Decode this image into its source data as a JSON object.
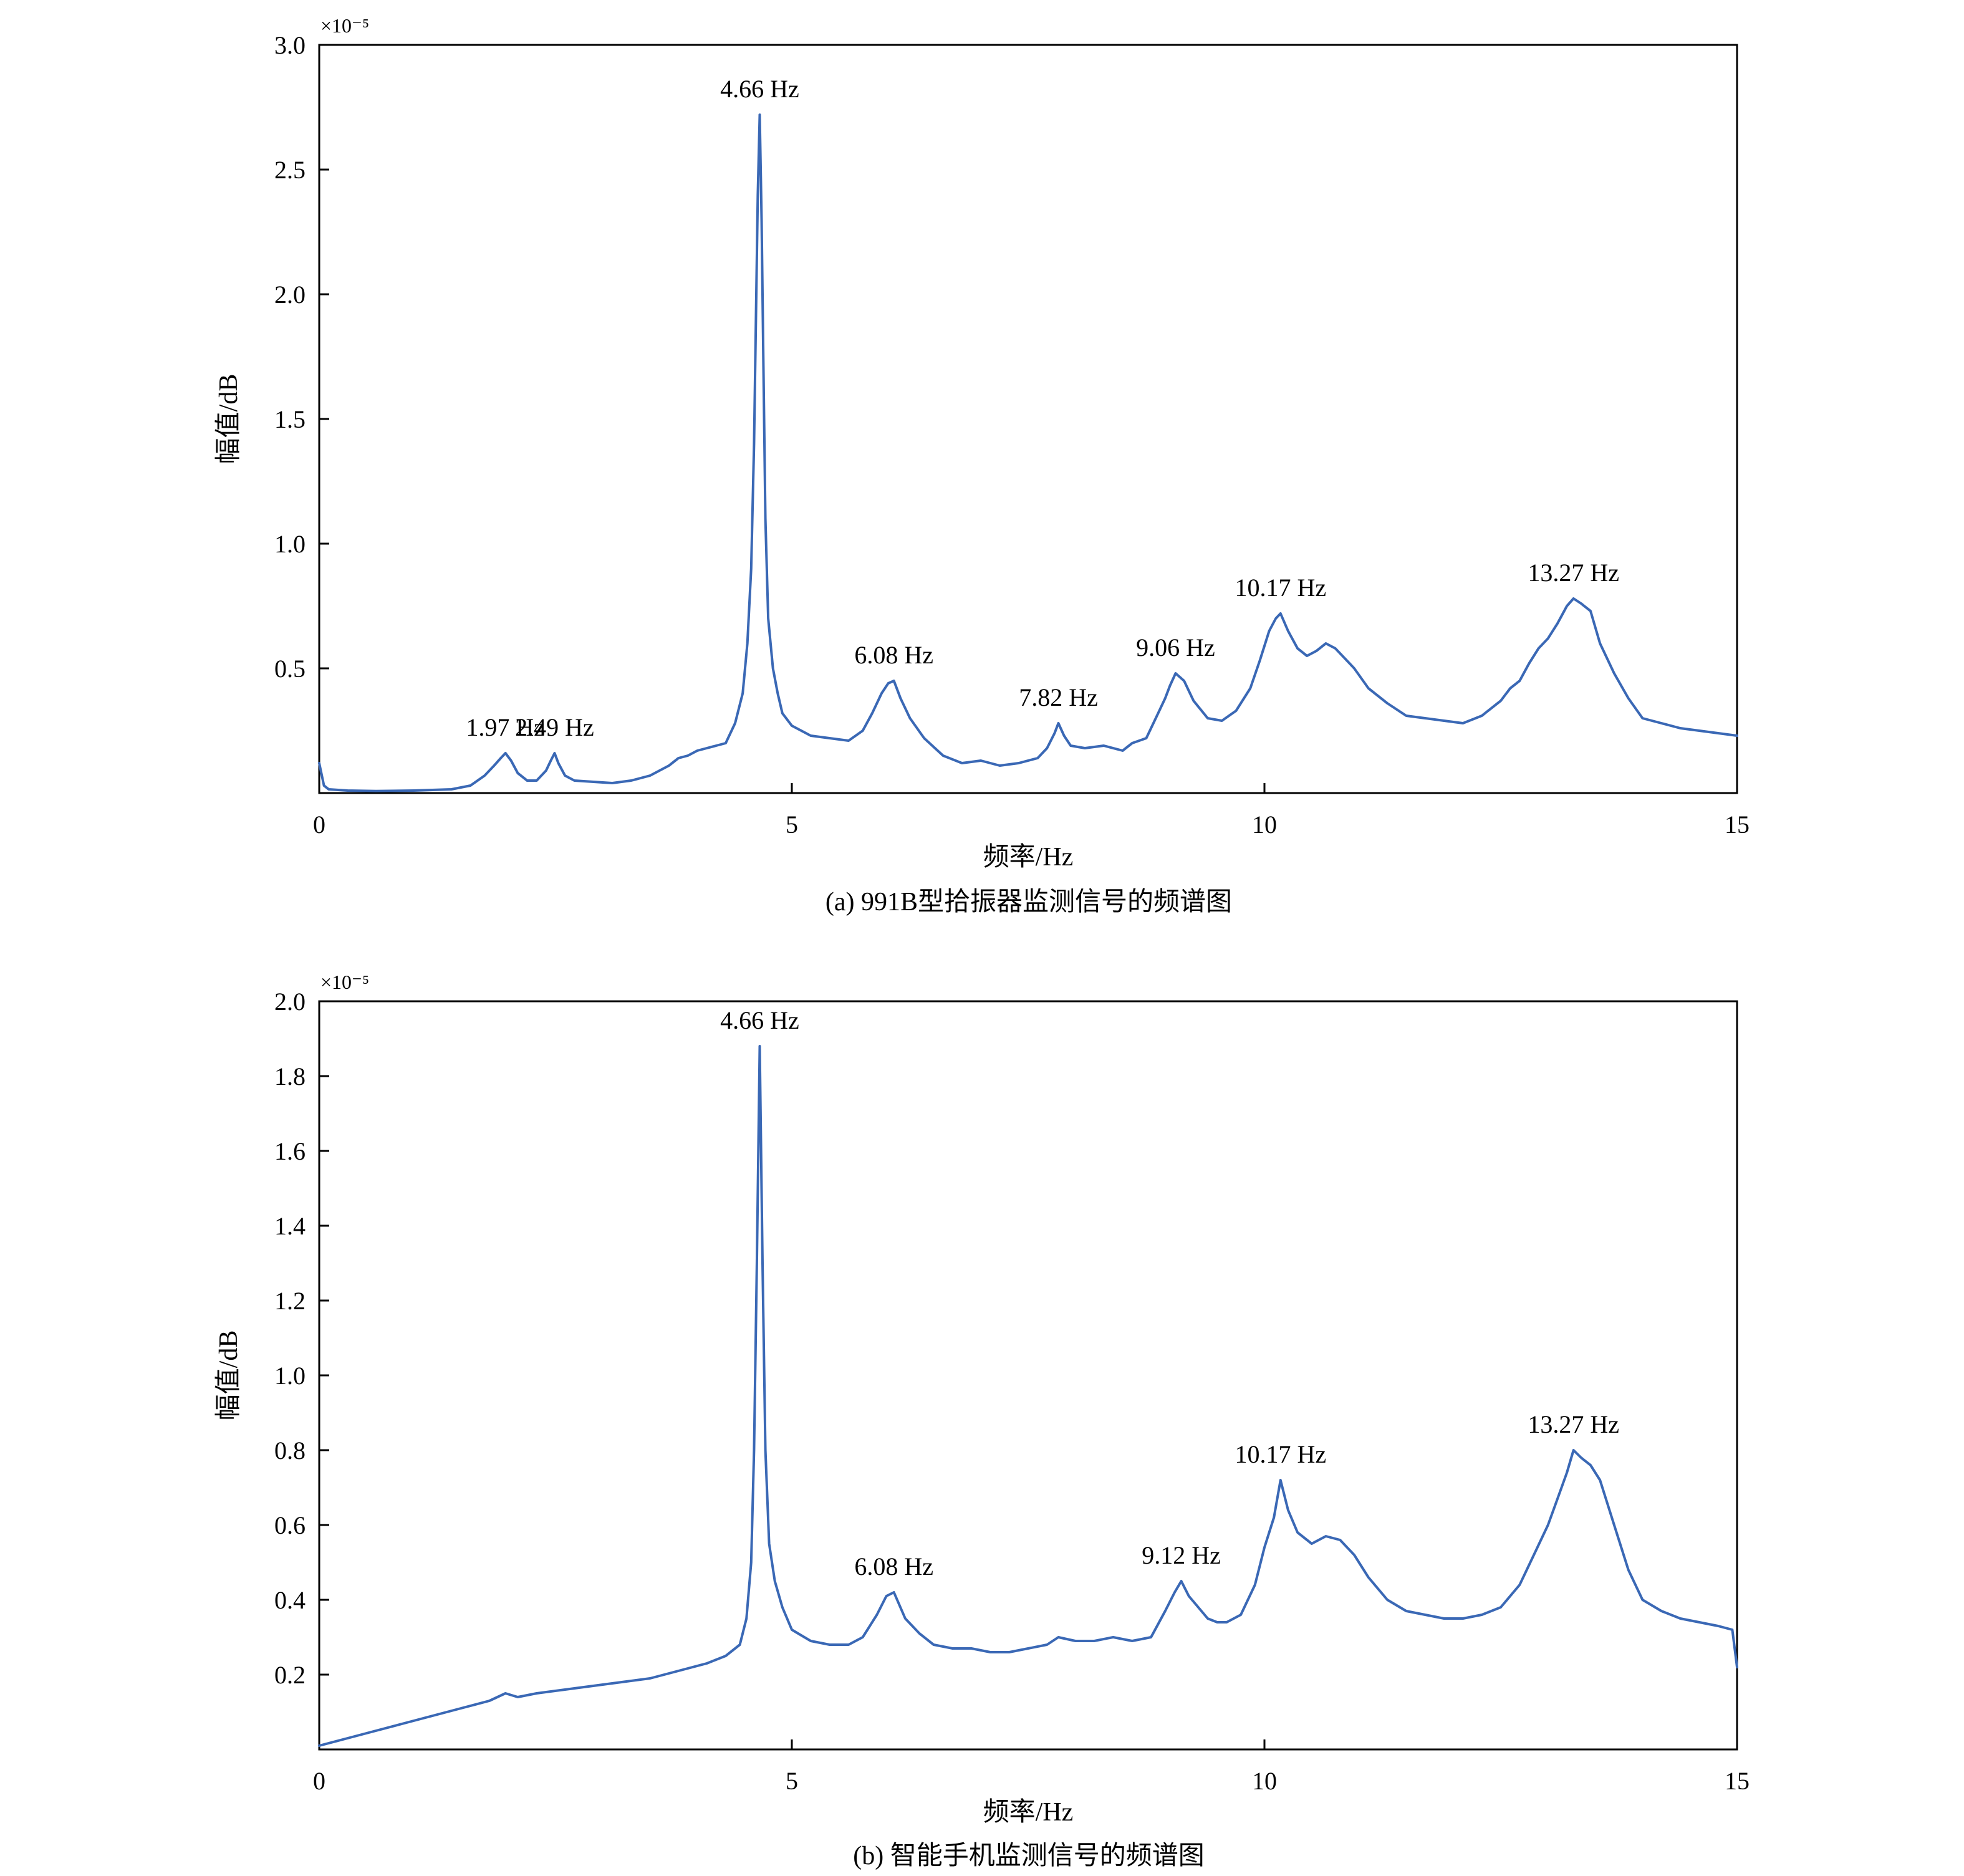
{
  "chart_data": [
    {
      "type": "line",
      "caption": "(a) 991B型拾振器监测信号的频谱图",
      "xlabel": "频率/Hz",
      "ylabel": "幅值/dB",
      "y_multiplier": "×10⁻⁵",
      "xlim": [
        0,
        15
      ],
      "ylim": [
        0,
        3.0
      ],
      "xticks": [
        0,
        5,
        10,
        15
      ],
      "yticks": [
        "0.5",
        "1.0",
        "1.5",
        "2.0",
        "2.5",
        "3.0"
      ],
      "grid": false,
      "line_color": "#3a68b5",
      "series": [
        {
          "x": [
            0,
            0.05,
            0.1,
            0.3,
            0.6,
            1.0,
            1.4,
            1.6,
            1.75,
            1.85,
            1.92,
            1.97,
            2.03,
            2.1,
            2.2,
            2.3,
            2.4,
            2.45,
            2.49,
            2.53,
            2.6,
            2.7,
            2.9,
            3.1,
            3.3,
            3.5,
            3.7,
            3.8,
            3.9,
            4.0,
            4.1,
            4.2,
            4.3,
            4.4,
            4.48,
            4.53,
            4.57,
            4.6,
            4.62,
            4.64,
            4.66,
            4.68,
            4.7,
            4.72,
            4.75,
            4.8,
            4.85,
            4.9,
            5.0,
            5.1,
            5.2,
            5.4,
            5.6,
            5.75,
            5.85,
            5.95,
            6.02,
            6.08,
            6.15,
            6.25,
            6.4,
            6.6,
            6.8,
            7.0,
            7.2,
            7.4,
            7.6,
            7.7,
            7.78,
            7.82,
            7.88,
            7.95,
            8.1,
            8.3,
            8.5,
            8.6,
            8.75,
            8.85,
            8.95,
            9.0,
            9.06,
            9.15,
            9.25,
            9.4,
            9.55,
            9.7,
            9.85,
            9.95,
            10.05,
            10.12,
            10.17,
            10.25,
            10.35,
            10.45,
            10.55,
            10.65,
            10.75,
            10.85,
            10.95,
            11.1,
            11.3,
            11.5,
            11.7,
            11.9,
            12.1,
            12.3,
            12.5,
            12.6,
            12.7,
            12.8,
            12.9,
            13.0,
            13.1,
            13.2,
            13.27,
            13.35,
            13.45,
            13.55,
            13.7,
            13.85,
            14.0,
            14.2,
            14.4,
            14.6,
            14.8,
            15.0
          ],
          "y": [
            0.12,
            0.03,
            0.015,
            0.01,
            0.008,
            0.01,
            0.015,
            0.03,
            0.07,
            0.11,
            0.14,
            0.16,
            0.13,
            0.08,
            0.05,
            0.05,
            0.09,
            0.13,
            0.16,
            0.12,
            0.07,
            0.05,
            0.045,
            0.04,
            0.05,
            0.07,
            0.11,
            0.14,
            0.15,
            0.17,
            0.18,
            0.19,
            0.2,
            0.28,
            0.4,
            0.6,
            0.9,
            1.4,
            1.9,
            2.4,
            2.72,
            2.3,
            1.7,
            1.1,
            0.7,
            0.5,
            0.4,
            0.32,
            0.27,
            0.25,
            0.23,
            0.22,
            0.21,
            0.25,
            0.32,
            0.4,
            0.44,
            0.45,
            0.38,
            0.3,
            0.22,
            0.15,
            0.12,
            0.13,
            0.11,
            0.12,
            0.14,
            0.18,
            0.24,
            0.28,
            0.23,
            0.19,
            0.18,
            0.19,
            0.17,
            0.2,
            0.22,
            0.3,
            0.38,
            0.43,
            0.48,
            0.45,
            0.37,
            0.3,
            0.29,
            0.33,
            0.42,
            0.53,
            0.65,
            0.7,
            0.72,
            0.65,
            0.58,
            0.55,
            0.57,
            0.6,
            0.58,
            0.54,
            0.5,
            0.42,
            0.36,
            0.31,
            0.3,
            0.29,
            0.28,
            0.31,
            0.37,
            0.42,
            0.45,
            0.52,
            0.58,
            0.62,
            0.68,
            0.75,
            0.78,
            0.76,
            0.73,
            0.6,
            0.48,
            0.38,
            0.3,
            0.28,
            0.26,
            0.25,
            0.24,
            0.23
          ]
        }
      ],
      "annotations": [
        {
          "text": "4.66 Hz",
          "x": 4.66,
          "y": 2.72
        },
        {
          "text": "1.97 Hz",
          "x": 1.97,
          "y": 0.16
        },
        {
          "text": "2.49 Hz",
          "x": 2.49,
          "y": 0.16
        },
        {
          "text": "6.08 Hz",
          "x": 6.08,
          "y": 0.45
        },
        {
          "text": "7.82 Hz",
          "x": 7.82,
          "y": 0.28
        },
        {
          "text": "9.06 Hz",
          "x": 9.06,
          "y": 0.48
        },
        {
          "text": "10.17 Hz",
          "x": 10.17,
          "y": 0.72
        },
        {
          "text": "13.27 Hz",
          "x": 13.27,
          "y": 0.78
        }
      ]
    },
    {
      "type": "line",
      "caption": "(b) 智能手机监测信号的频谱图",
      "xlabel": "频率/Hz",
      "ylabel": "幅值/dB",
      "y_multiplier": "×10⁻⁵",
      "xlim": [
        0,
        15
      ],
      "ylim": [
        0,
        2.0
      ],
      "xticks": [
        0,
        5,
        10,
        15
      ],
      "yticks": [
        "0.2",
        "0.4",
        "0.6",
        "0.8",
        "1.0",
        "1.2",
        "1.4",
        "1.6",
        "1.8",
        "2.0"
      ],
      "grid": false,
      "line_color": "#3a68b5",
      "series": [
        {
          "x": [
            0,
            0.3,
            0.6,
            0.9,
            1.2,
            1.5,
            1.8,
            1.97,
            2.1,
            2.3,
            2.6,
            2.9,
            3.2,
            3.5,
            3.8,
            4.1,
            4.3,
            4.45,
            4.52,
            4.57,
            4.6,
            4.63,
            4.66,
            4.69,
            4.72,
            4.76,
            4.82,
            4.9,
            5.0,
            5.2,
            5.4,
            5.6,
            5.75,
            5.9,
            6.0,
            6.08,
            6.2,
            6.35,
            6.5,
            6.7,
            6.9,
            7.1,
            7.3,
            7.5,
            7.7,
            7.82,
            8.0,
            8.2,
            8.4,
            8.6,
            8.8,
            8.95,
            9.05,
            9.12,
            9.2,
            9.3,
            9.4,
            9.5,
            9.6,
            9.75,
            9.9,
            10.0,
            10.1,
            10.17,
            10.25,
            10.35,
            10.5,
            10.65,
            10.8,
            10.95,
            11.1,
            11.3,
            11.5,
            11.7,
            11.9,
            12.1,
            12.3,
            12.5,
            12.7,
            12.85,
            13.0,
            13.1,
            13.2,
            13.27,
            13.35,
            13.45,
            13.55,
            13.7,
            13.85,
            14.0,
            14.2,
            14.4,
            14.6,
            14.8,
            14.95,
            15.0
          ],
          "y": [
            0.01,
            0.03,
            0.05,
            0.07,
            0.09,
            0.11,
            0.13,
            0.15,
            0.14,
            0.15,
            0.16,
            0.17,
            0.18,
            0.19,
            0.21,
            0.23,
            0.25,
            0.28,
            0.35,
            0.5,
            0.8,
            1.3,
            1.88,
            1.3,
            0.8,
            0.55,
            0.45,
            0.38,
            0.32,
            0.29,
            0.28,
            0.28,
            0.3,
            0.36,
            0.41,
            0.42,
            0.35,
            0.31,
            0.28,
            0.27,
            0.27,
            0.26,
            0.26,
            0.27,
            0.28,
            0.3,
            0.29,
            0.29,
            0.3,
            0.29,
            0.3,
            0.37,
            0.42,
            0.45,
            0.41,
            0.38,
            0.35,
            0.34,
            0.34,
            0.36,
            0.44,
            0.54,
            0.62,
            0.72,
            0.64,
            0.58,
            0.55,
            0.57,
            0.56,
            0.52,
            0.46,
            0.4,
            0.37,
            0.36,
            0.35,
            0.35,
            0.36,
            0.38,
            0.44,
            0.52,
            0.6,
            0.67,
            0.74,
            0.8,
            0.78,
            0.76,
            0.72,
            0.6,
            0.48,
            0.4,
            0.37,
            0.35,
            0.34,
            0.33,
            0.32,
            0.22
          ]
        }
      ],
      "annotations": [
        {
          "text": "4.66 Hz",
          "x": 4.66,
          "y": 1.88
        },
        {
          "text": "6.08 Hz",
          "x": 6.08,
          "y": 0.42
        },
        {
          "text": "9.12 Hz",
          "x": 9.12,
          "y": 0.45
        },
        {
          "text": "10.17 Hz",
          "x": 10.17,
          "y": 0.72
        },
        {
          "text": "13.27 Hz",
          "x": 13.27,
          "y": 0.8
        }
      ]
    }
  ]
}
